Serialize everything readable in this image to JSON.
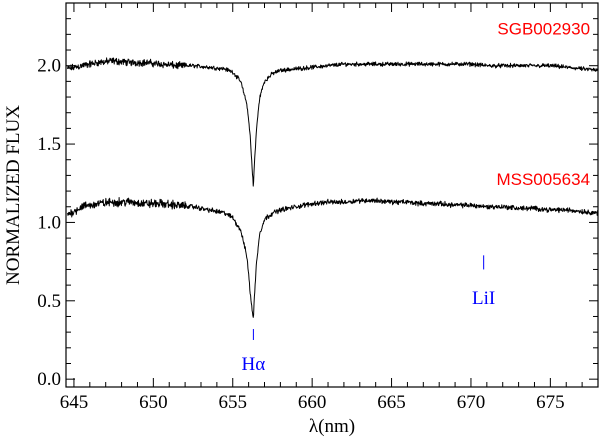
{
  "chart_data": {
    "type": "line",
    "title": "",
    "xlabel": "λ(nm)",
    "ylabel": "NORMALIZED FLUX",
    "xlim": [
      644.5,
      678
    ],
    "ylim": [
      -0.05,
      2.4
    ],
    "x_ticks": [
      645,
      650,
      655,
      660,
      665,
      670,
      675
    ],
    "y_ticks": [
      0.0,
      0.5,
      1.0,
      1.5,
      2.0
    ],
    "x_tick_labels": [
      "645",
      "650",
      "655",
      "660",
      "665",
      "670",
      "675"
    ],
    "y_tick_labels": [
      "0.0",
      "0.5",
      "1.0",
      "1.5",
      "2.0"
    ],
    "grid": false,
    "legend": "none",
    "series": [
      {
        "name": "SGB002930",
        "color": "#ff0000",
        "x": [
          644.6,
          645.5,
          646.5,
          647.5,
          648.5,
          649.5,
          650.5,
          651.5,
          652.5,
          653.5,
          654.5,
          655.0,
          655.5,
          655.9,
          656.1,
          656.25,
          656.3,
          656.35,
          656.5,
          656.7,
          657.0,
          657.5,
          658.0,
          659.0,
          660.0,
          661.0,
          662.0,
          663.0,
          664.0,
          665.0,
          666.0,
          667.0,
          668.0,
          669.0,
          670.0,
          671.0,
          672.0,
          673.0,
          674.0,
          675.0,
          676.0,
          677.0,
          678.0
        ],
        "y": [
          1.98,
          2.0,
          2.02,
          2.03,
          2.02,
          2.02,
          2.01,
          2.0,
          2.0,
          1.99,
          1.98,
          1.96,
          1.9,
          1.75,
          1.55,
          1.3,
          1.22,
          1.35,
          1.6,
          1.8,
          1.9,
          1.95,
          1.97,
          1.98,
          1.99,
          2.0,
          2.01,
          2.01,
          2.01,
          2.01,
          2.01,
          2.01,
          2.01,
          2.01,
          2.01,
          2.0,
          2.0,
          2.0,
          2.0,
          2.0,
          1.99,
          1.98,
          1.97
        ]
      },
      {
        "name": "MSS005634",
        "color": "#ff0000",
        "x": [
          644.6,
          645.5,
          646.5,
          647.5,
          648.5,
          649.5,
          650.5,
          651.5,
          652.5,
          653.5,
          654.5,
          655.0,
          655.5,
          655.9,
          656.1,
          656.25,
          656.3,
          656.35,
          656.5,
          656.7,
          657.0,
          657.5,
          658.0,
          659.0,
          660.0,
          661.0,
          662.0,
          663.0,
          664.0,
          665.0,
          666.0,
          667.0,
          668.0,
          669.0,
          670.0,
          671.0,
          672.0,
          673.0,
          674.0,
          675.0,
          676.0,
          677.0,
          678.0
        ],
        "y": [
          1.05,
          1.1,
          1.12,
          1.13,
          1.13,
          1.12,
          1.12,
          1.11,
          1.1,
          1.08,
          1.06,
          1.03,
          0.95,
          0.78,
          0.55,
          0.42,
          0.38,
          0.5,
          0.75,
          0.93,
          1.02,
          1.06,
          1.08,
          1.1,
          1.12,
          1.13,
          1.13,
          1.14,
          1.14,
          1.13,
          1.13,
          1.12,
          1.12,
          1.11,
          1.11,
          1.1,
          1.1,
          1.09,
          1.09,
          1.08,
          1.08,
          1.07,
          1.06
        ]
      }
    ],
    "annotations": [
      {
        "text": "SGB002930",
        "x": 677.5,
        "y": 2.2,
        "color": "#ff0000"
      },
      {
        "text": "MSS005634",
        "x": 677.5,
        "y": 1.24,
        "color": "#ff0000"
      },
      {
        "text": "Hα",
        "x": 656.3,
        "y": 0.06,
        "color": "#0000ff",
        "marker_y": [
          0.25,
          0.32
        ]
      },
      {
        "text": "LiI",
        "x": 670.8,
        "y": 0.48,
        "color": "#0000ff",
        "marker_y": [
          0.7,
          0.79
        ]
      }
    ]
  }
}
